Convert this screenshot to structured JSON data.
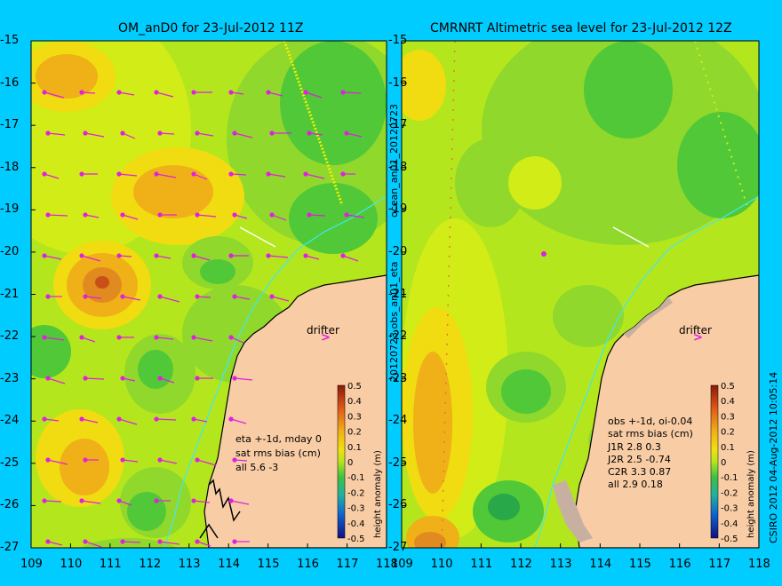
{
  "left_panel": {
    "title": "OM_anD0 for 23-Jul-2012 11Z",
    "side_label": "ocean_an01_20120723",
    "drifter_label": "drifter",
    "legend": [
      "eta +-1d, mday 0",
      "sat rms bias (cm)",
      "all 5.6 -3"
    ]
  },
  "right_panel": {
    "title": "CMRNRT Altimetric sea level  for 23-Jul-2012 12Z",
    "side_label": "20120723.obs_an01_eta",
    "drifter_label": "drifter",
    "legend": [
      "obs +-1d, oi-0.04",
      "sat rms bias (cm)",
      "J1R   2.8  0.3",
      "J2R   2.5 -0.74",
      "C2R   3.3  0.87",
      "all  2.9  0.18"
    ]
  },
  "colorbar": {
    "label": "height anomaly (m)",
    "ticks": [
      "0.5",
      "0.4",
      "0.3",
      "0.2",
      "0.1",
      "0",
      "-0.1",
      "-0.2",
      "-0.3",
      "-0.4",
      "-0.5"
    ]
  },
  "credit": "CSIRO 2012   04-Aug-2012 10:05:14",
  "axes": {
    "lat_labels": [
      "-15",
      "-16",
      "-17",
      "-18",
      "-19",
      "-20",
      "-21",
      "-22",
      "-23",
      "-24",
      "-25",
      "-26",
      "-27"
    ],
    "lon_labels": [
      "109",
      "110",
      "111",
      "112",
      "113",
      "114",
      "115",
      "116",
      "117",
      "118"
    ]
  },
  "colors": {
    "background": "#00ccff",
    "land": "#f8cca4",
    "coast": "#000000",
    "vector": "#e020e0"
  }
}
